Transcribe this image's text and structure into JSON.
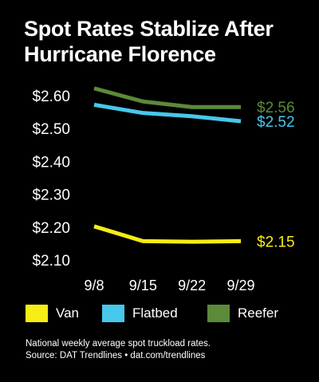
{
  "header": {
    "title_line1": "Spot Rates Stablize After",
    "title_line2": "Hurricane Florence"
  },
  "chart_data": {
    "type": "line",
    "title": "Spot Rates Stablize After Hurricane Florence",
    "categories": [
      "9/8",
      "9/15",
      "9/22",
      "9/29"
    ],
    "yticks": [
      "$2.60",
      "$2.50",
      "$2.40",
      "$2.30",
      "$2.20",
      "$2.10"
    ],
    "ytick_values": [
      2.6,
      2.5,
      2.4,
      2.3,
      2.2,
      2.1
    ],
    "ylim": [
      2.1,
      2.6
    ],
    "grid": false,
    "legend_position": "bottom",
    "series": [
      {
        "name": "Van",
        "color": "#f7ec13",
        "values": [
          2.2,
          2.155,
          2.153,
          2.155
        ],
        "end_label": "$2.15"
      },
      {
        "name": "Flatbed",
        "color": "#47c7ec",
        "values": [
          2.57,
          2.545,
          2.535,
          2.52
        ],
        "end_label": "$2.52"
      },
      {
        "name": "Reefer",
        "color": "#5c8a38",
        "values": [
          2.62,
          2.58,
          2.563,
          2.563
        ],
        "end_label": "$2.56"
      }
    ]
  },
  "footnote": {
    "line1": "National weekly average spot truckload rates.",
    "line2": "Source: DAT Trendlines • dat.com/trendlines"
  }
}
